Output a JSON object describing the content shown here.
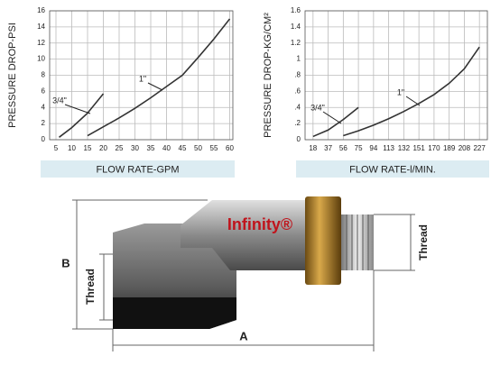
{
  "chart_data": [
    {
      "type": "line",
      "x_label": "FLOW RATE-GPM",
      "y_label": "PRESSURE DROP-PSI",
      "xlim": [
        3,
        61
      ],
      "xticks": [
        5,
        10,
        15,
        20,
        25,
        30,
        35,
        40,
        45,
        50,
        55,
        60
      ],
      "ylim": [
        0,
        16
      ],
      "yticks": [
        0,
        2,
        4,
        6,
        8,
        10,
        12,
        14,
        16
      ],
      "grid": true,
      "series": [
        {
          "name": "3/4\"",
          "color": "#333333",
          "x": [
            6,
            10,
            15,
            20
          ],
          "values": [
            0.3,
            1.5,
            3.3,
            5.7
          ]
        },
        {
          "name": "1\"",
          "color": "#333333",
          "x": [
            15,
            20,
            25,
            30,
            35,
            40,
            45,
            50,
            55,
            60
          ],
          "values": [
            0.5,
            1.6,
            2.7,
            3.9,
            5.2,
            6.6,
            8,
            10.2,
            12.5,
            15
          ]
        }
      ]
    },
    {
      "type": "line",
      "x_label": "FLOW RATE-l/MIN.",
      "y_label": "PRESSURE DROP-KG/CM²",
      "xlim": [
        8,
        237
      ],
      "xticks": [
        18,
        37,
        56,
        75,
        94,
        113,
        132,
        151,
        170,
        189,
        208,
        227
      ],
      "ylim": [
        0,
        1.6
      ],
      "yticks": [
        0,
        {
          "value": 0.2,
          "label": ".2"
        },
        {
          "value": 0.4,
          "label": ".4"
        },
        {
          "value": 0.6,
          "label": ".6"
        },
        {
          "value": 0.8,
          "label": ".8"
        },
        1,
        1.2,
        1.4,
        1.6
      ],
      "grid": true,
      "series": [
        {
          "name": "3/4\"",
          "color": "#333333",
          "x": [
            18,
            37,
            56,
            75
          ],
          "values": [
            0.04,
            0.12,
            0.25,
            0.4
          ]
        },
        {
          "name": "1\"",
          "color": "#333333",
          "x": [
            56,
            75,
            94,
            113,
            132,
            151,
            170,
            189,
            208,
            227
          ],
          "values": [
            0.05,
            0.11,
            0.18,
            0.26,
            0.35,
            0.45,
            0.56,
            0.7,
            0.88,
            1.15
          ]
        }
      ]
    }
  ],
  "diagram": {
    "brand": "Infinity®",
    "dimension_a": "A",
    "dimension_b": "B",
    "thread_left": "Thread",
    "thread_right": "Thread"
  }
}
